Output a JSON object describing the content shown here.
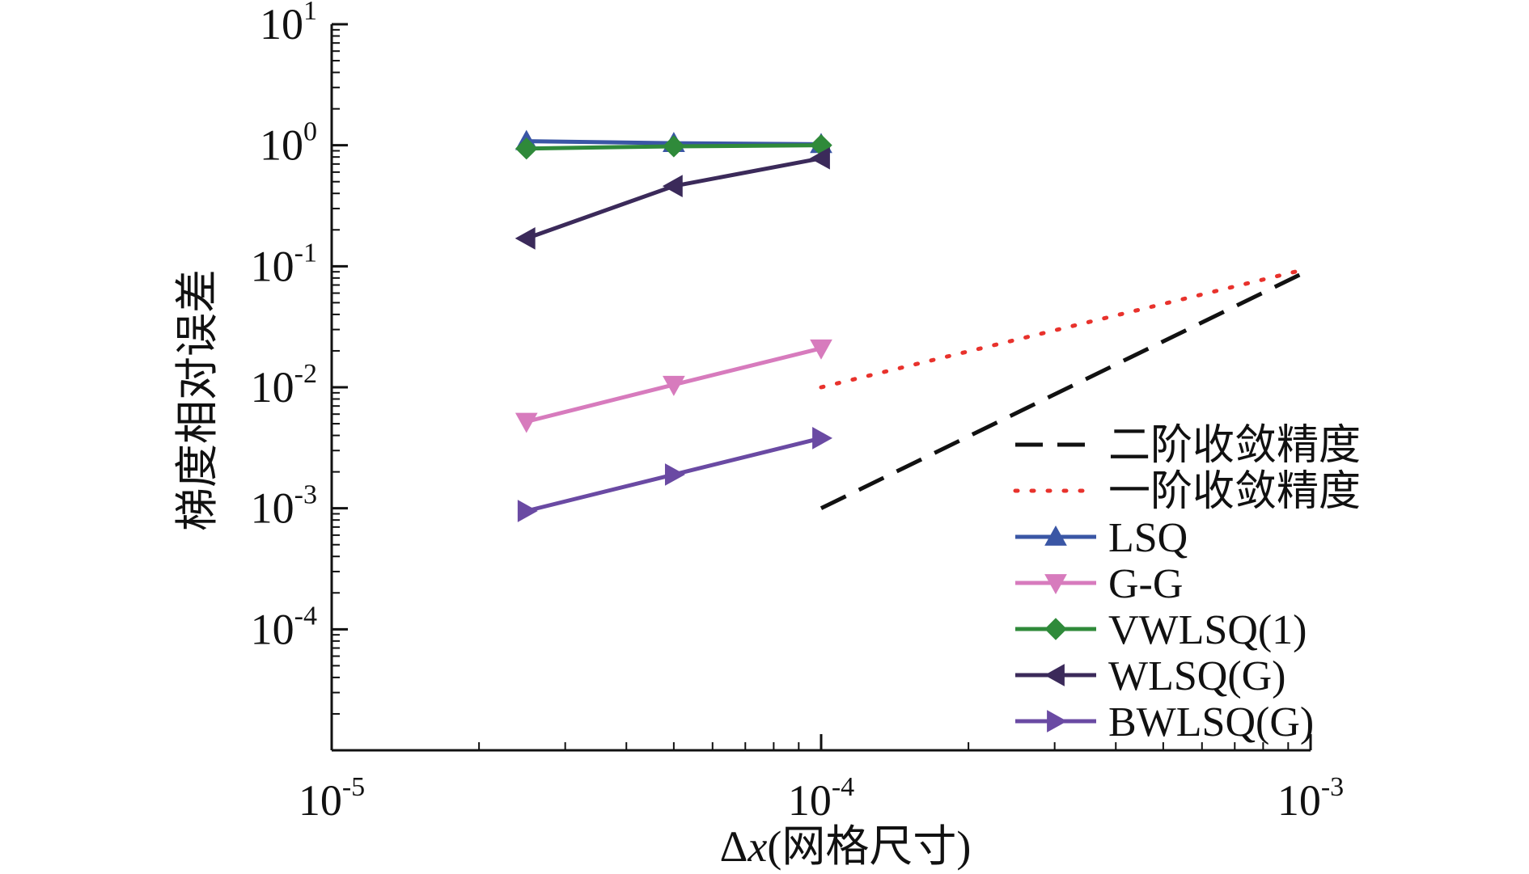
{
  "chart_data": {
    "type": "line",
    "xscale": "log",
    "yscale": "log",
    "xlim": [
      1e-05,
      0.001
    ],
    "ylim": [
      1e-05,
      10
    ],
    "xlabel": "Δx(网格尺寸)",
    "ylabel": "梯度相对误差",
    "xlabel_parts": {
      "symbol": "Δ",
      "var": "x",
      "rest": "(网格尺寸)"
    },
    "xticks": [
      {
        "base": "10",
        "exp": "-5",
        "value": 1e-05
      },
      {
        "base": "10",
        "exp": "-4",
        "value": 0.0001
      },
      {
        "base": "10",
        "exp": "-3",
        "value": 0.001
      }
    ],
    "yticks": [
      {
        "base": "10",
        "exp": "1",
        "value": 10
      },
      {
        "base": "10",
        "exp": "0",
        "value": 1
      },
      {
        "base": "10",
        "exp": "-1",
        "value": 0.1
      },
      {
        "base": "10",
        "exp": "-2",
        "value": 0.01
      },
      {
        "base": "10",
        "exp": "-3",
        "value": 0.001
      },
      {
        "base": "10",
        "exp": "-4",
        "value": 0.0001
      }
    ],
    "series": [
      {
        "name": "二阶收敛精度",
        "color": "#111111",
        "style": "dashed",
        "marker": "none",
        "x": [
          0.0001,
          0.00095
        ],
        "y": [
          0.001,
          0.085
        ]
      },
      {
        "name": "一阶收敛精度",
        "color": "#e8322c",
        "style": "dotted",
        "marker": "none",
        "x": [
          0.0001,
          0.00095
        ],
        "y": [
          0.01,
          0.092
        ]
      },
      {
        "name": "LSQ",
        "color": "#3a56a5",
        "style": "solid",
        "marker": "triangle-up",
        "x": [
          2.5e-05,
          5e-05,
          0.0001
        ],
        "y": [
          1.08,
          1.04,
          1.02
        ]
      },
      {
        "name": "G-G",
        "color": "#d77bbd",
        "style": "solid",
        "marker": "triangle-down",
        "x": [
          2.5e-05,
          5e-05,
          0.0001
        ],
        "y": [
          0.0052,
          0.0105,
          0.021
        ]
      },
      {
        "name": "VWLSQ(1)",
        "color": "#2f8a3a",
        "style": "solid",
        "marker": "diamond",
        "x": [
          2.5e-05,
          5e-05,
          0.0001
        ],
        "y": [
          0.94,
          0.98,
          1.0
        ]
      },
      {
        "name": "WLSQ(G)",
        "color": "#3b2a5a",
        "style": "solid",
        "marker": "triangle-left",
        "x": [
          2.5e-05,
          5e-05,
          0.0001
        ],
        "y": [
          0.17,
          0.46,
          0.78
        ]
      },
      {
        "name": "BWLSQ(G)",
        "color": "#6a4aa3",
        "style": "solid",
        "marker": "triangle-right",
        "x": [
          2.5e-05,
          5e-05,
          0.0001
        ],
        "y": [
          0.00095,
          0.0019,
          0.0038
        ]
      }
    ],
    "legend": {
      "position": "bottom-right",
      "entries": [
        "二阶收敛精度",
        "一阶收敛精度",
        "LSQ",
        "G-G",
        "VWLSQ(1)",
        "WLSQ(G)",
        "BWLSQ(G)"
      ]
    }
  }
}
